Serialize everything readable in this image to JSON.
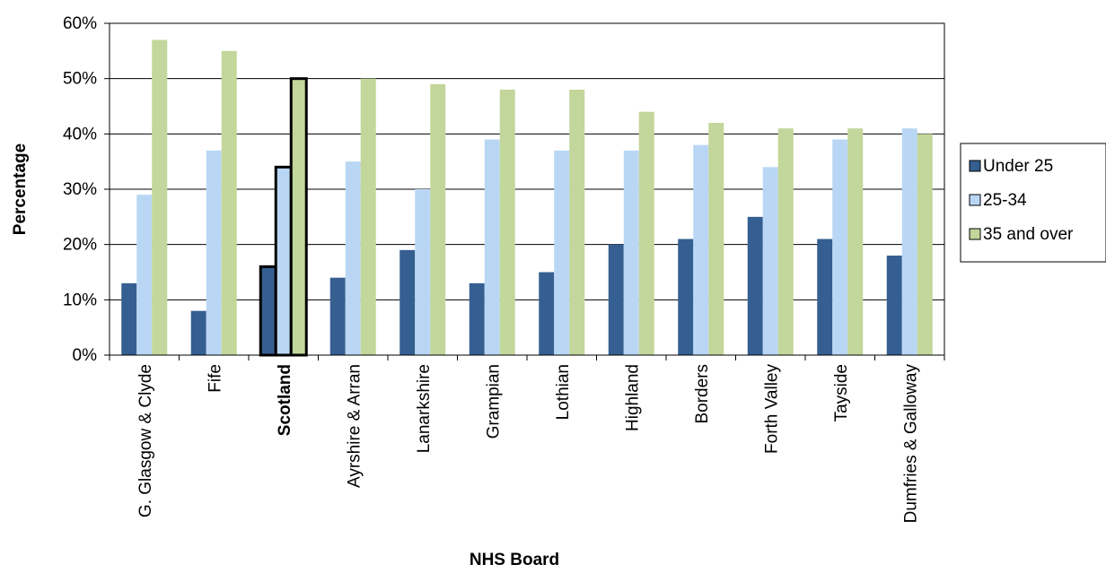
{
  "chart_data": {
    "type": "bar",
    "title": "",
    "xlabel": "NHS Board",
    "ylabel": "Percentage",
    "ylim": [
      0,
      60
    ],
    "ytick_step": 10,
    "ytick_format": "percent",
    "grid": "horizontal",
    "legend": "right",
    "highlight_category": "Scotland",
    "categories": [
      "G. Glasgow & Clyde",
      "Fife",
      "Scotland",
      "Ayrshire & Arran",
      "Lanarkshire",
      "Grampian",
      "Lothian",
      "Highland",
      "Borders",
      "Forth Valley",
      "Tayside",
      "Dumfries & Galloway"
    ],
    "series": [
      {
        "name": "Under 25",
        "color": "#355F91",
        "values": [
          13,
          8,
          16,
          14,
          19,
          13,
          15,
          20,
          21,
          25,
          21,
          18
        ]
      },
      {
        "name": "25-34",
        "color": "#B9D7F5",
        "values": [
          29,
          37,
          34,
          35,
          30,
          39,
          37,
          37,
          38,
          34,
          39,
          41
        ]
      },
      {
        "name": "35 and over",
        "color": "#C3D69B",
        "values": [
          57,
          55,
          50,
          50,
          49,
          48,
          48,
          44,
          42,
          41,
          41,
          40
        ]
      }
    ]
  }
}
